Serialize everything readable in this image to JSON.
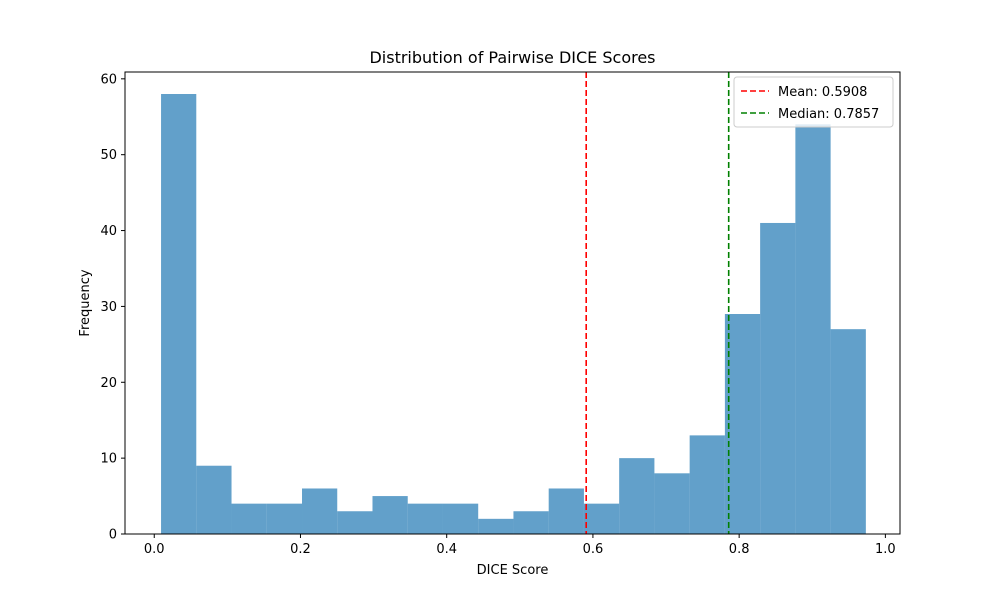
{
  "chart_data": {
    "type": "bar",
    "title": "Distribution of Pairwise DICE Scores",
    "xlabel": "DICE Score",
    "ylabel": "Frequency",
    "xlim": [
      -0.04,
      1.02
    ],
    "ylim": [
      0,
      60.9
    ],
    "x_ticks": [
      0.0,
      0.2,
      0.4,
      0.6,
      0.8,
      1.0
    ],
    "x_tick_labels": [
      "0.0",
      "0.2",
      "0.4",
      "0.6",
      "0.8",
      "1.0"
    ],
    "y_ticks": [
      0,
      10,
      20,
      30,
      40,
      50,
      60
    ],
    "y_tick_labels": [
      "0",
      "10",
      "20",
      "30",
      "40",
      "50",
      "60"
    ],
    "bin_start": 0.0093,
    "bin_width": 0.0482,
    "values": [
      58,
      9,
      4,
      4,
      6,
      3,
      5,
      4,
      4,
      2,
      3,
      6,
      4,
      10,
      8,
      13,
      29,
      41,
      54,
      27
    ],
    "bar_color": "#1f77b4",
    "bar_alpha": 0.7,
    "reference_lines": [
      {
        "label": "Mean: 0.5908",
        "x": 0.5908,
        "color": "#ff0000",
        "style": "dashed"
      },
      {
        "label": "Median: 0.7857",
        "x": 0.7857,
        "color": "#008000",
        "style": "dashed"
      }
    ],
    "legend_position": "top-right",
    "grid": false
  }
}
